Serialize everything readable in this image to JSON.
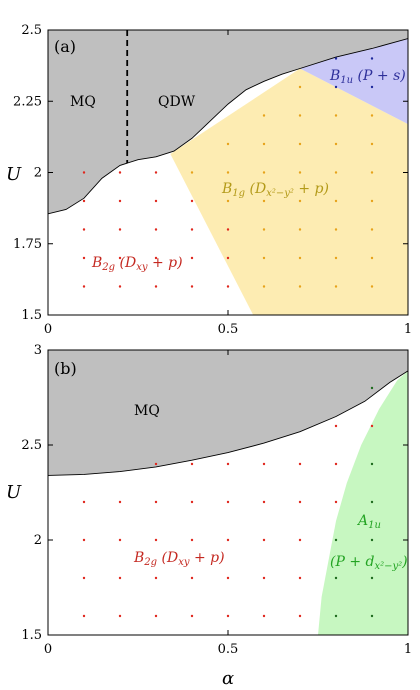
{
  "chart_data": [
    {
      "type": "scatter",
      "panel_label": "(a)",
      "xlabel": "",
      "ylabel": "U",
      "xlim": [
        0,
        1
      ],
      "ylim": [
        1.5,
        2.5
      ],
      "x_ticks": [
        {
          "v": 0,
          "t": "0"
        },
        {
          "v": 0.5,
          "t": "0.5"
        },
        {
          "v": 1,
          "t": "1"
        }
      ],
      "y_ticks": [
        {
          "v": 1.5,
          "t": "1.5"
        },
        {
          "v": 1.75,
          "t": "1.75"
        },
        {
          "v": 2,
          "t": "2"
        },
        {
          "v": 2.25,
          "t": "2.25"
        },
        {
          "v": 2.5,
          "t": "2.5"
        }
      ],
      "labels": {
        "mq": "MQ",
        "qdw": "QDW",
        "b1u": {
          "main": "B",
          "sub": "1u",
          "rest": " (P + s)"
        },
        "b1g": {
          "main": "B",
          "sub": "1g",
          "rest1": " (D",
          "sub2": "x²−y²",
          "rest2": " + p)"
        },
        "b2g": {
          "main": "B",
          "sub": "2g",
          "rest1": " (D",
          "sub2": "xy",
          "rest2": " + p)"
        }
      },
      "colors": {
        "gray": "#bfbfbf",
        "yellow": "#fdecb2",
        "blue": "#c9c8f7",
        "red": "#e0281e",
        "orange": "#e7a31b",
        "navy": "#1f2a9c",
        "b1g_text": "#b39a19",
        "b1u_text": "#2d2f9a",
        "b2g_text": "#c42820"
      },
      "boundary_upper": [
        [
          0,
          1.855
        ],
        [
          0.05,
          1.87
        ],
        [
          0.1,
          1.91
        ],
        [
          0.15,
          1.98
        ],
        [
          0.2,
          2.025
        ],
        [
          0.25,
          2.045
        ],
        [
          0.3,
          2.055
        ],
        [
          0.35,
          2.075
        ],
        [
          0.4,
          2.12
        ],
        [
          0.45,
          2.18
        ],
        [
          0.5,
          2.24
        ],
        [
          0.55,
          2.29
        ],
        [
          0.6,
          2.32
        ],
        [
          0.65,
          2.345
        ],
        [
          0.7,
          2.365
        ],
        [
          0.8,
          2.405
        ],
        [
          0.9,
          2.435
        ],
        [
          1.0,
          2.47
        ]
      ],
      "qdw_divider_x": 0.22,
      "b1g_region": [
        [
          0.34,
          2.065
        ],
        [
          0.7,
          2.365
        ],
        [
          1.0,
          2.17
        ],
        [
          1.0,
          1.5
        ],
        [
          0.57,
          1.5
        ]
      ],
      "b1u_region": [
        [
          0.7,
          2.365
        ],
        [
          0.8,
          2.405
        ],
        [
          0.9,
          2.435
        ],
        [
          1.0,
          2.47
        ],
        [
          1.0,
          2.17
        ]
      ],
      "points_red": [
        [
          0.1,
          1.6
        ],
        [
          0.2,
          1.6
        ],
        [
          0.3,
          1.6
        ],
        [
          0.4,
          1.6
        ],
        [
          0.5,
          1.6
        ],
        [
          0.1,
          1.7
        ],
        [
          0.2,
          1.7
        ],
        [
          0.3,
          1.7
        ],
        [
          0.4,
          1.7
        ],
        [
          0.5,
          1.7
        ],
        [
          0.1,
          1.8
        ],
        [
          0.2,
          1.8
        ],
        [
          0.3,
          1.8
        ],
        [
          0.4,
          1.8
        ],
        [
          0.5,
          1.8
        ],
        [
          0.1,
          1.9
        ],
        [
          0.2,
          1.9
        ],
        [
          0.3,
          1.9
        ],
        [
          0.4,
          1.9
        ],
        [
          0.1,
          2.0
        ],
        [
          0.2,
          2.0
        ],
        [
          0.3,
          2.0
        ]
      ],
      "points_orange": [
        [
          0.6,
          1.6
        ],
        [
          0.7,
          1.6
        ],
        [
          0.8,
          1.6
        ],
        [
          0.9,
          1.6
        ],
        [
          0.6,
          1.7
        ],
        [
          0.7,
          1.7
        ],
        [
          0.8,
          1.7
        ],
        [
          0.9,
          1.7
        ],
        [
          0.6,
          1.8
        ],
        [
          0.7,
          1.8
        ],
        [
          0.8,
          1.8
        ],
        [
          0.9,
          1.8
        ],
        [
          0.5,
          1.9
        ],
        [
          0.6,
          1.9
        ],
        [
          0.7,
          1.9
        ],
        [
          0.8,
          1.9
        ],
        [
          0.9,
          1.9
        ],
        [
          0.4,
          2.0
        ],
        [
          0.5,
          2.0
        ],
        [
          0.6,
          2.0
        ],
        [
          0.7,
          2.0
        ],
        [
          0.8,
          2.0
        ],
        [
          0.9,
          2.0
        ],
        [
          0.5,
          2.1
        ],
        [
          0.6,
          2.1
        ],
        [
          0.7,
          2.1
        ],
        [
          0.8,
          2.1
        ],
        [
          0.9,
          2.1
        ],
        [
          0.6,
          2.2
        ],
        [
          0.7,
          2.2
        ],
        [
          0.8,
          2.2
        ],
        [
          0.9,
          2.2
        ],
        [
          0.7,
          2.3
        ]
      ],
      "points_navy": [
        [
          0.8,
          2.3
        ],
        [
          0.9,
          2.3
        ],
        [
          0.8,
          2.4
        ],
        [
          0.9,
          2.4
        ]
      ]
    },
    {
      "type": "scatter",
      "panel_label": "(b)",
      "xlabel": "α",
      "ylabel": "U",
      "xlim": [
        0,
        1
      ],
      "ylim": [
        1.5,
        3
      ],
      "x_ticks": [
        {
          "v": 0,
          "t": "0"
        },
        {
          "v": 0.5,
          "t": "0.5"
        },
        {
          "v": 1,
          "t": "1"
        }
      ],
      "y_ticks": [
        {
          "v": 1.5,
          "t": "1.5"
        },
        {
          "v": 2,
          "t": "2"
        },
        {
          "v": 2.5,
          "t": "2.5"
        },
        {
          "v": 3,
          "t": "3"
        }
      ],
      "labels": {
        "mq": "MQ",
        "a1u": {
          "main": "A",
          "sub": "1u"
        },
        "a1u_2": {
          "rest1": "(P + d",
          "sub2": "x²−y²",
          "rest2": ")"
        },
        "b2g": {
          "main": "B",
          "sub": "2g",
          "rest1": " (D",
          "sub2": "xy",
          "rest2": " + p)"
        }
      },
      "colors": {
        "gray": "#bfbfbf",
        "green": "#c7f7c1",
        "red": "#e0281e",
        "darkgreen": "#1e6b1e",
        "a1u_text": "#23a323",
        "b2g_text": "#c42820"
      },
      "boundary_upper": [
        [
          0,
          2.34
        ],
        [
          0.1,
          2.345
        ],
        [
          0.2,
          2.36
        ],
        [
          0.3,
          2.385
        ],
        [
          0.4,
          2.42
        ],
        [
          0.5,
          2.46
        ],
        [
          0.6,
          2.51
        ],
        [
          0.7,
          2.57
        ],
        [
          0.8,
          2.65
        ],
        [
          0.88,
          2.73
        ],
        [
          0.95,
          2.83
        ],
        [
          1.0,
          2.89
        ]
      ],
      "a1u_region": [
        [
          0.75,
          1.5
        ],
        [
          0.76,
          1.7
        ],
        [
          0.78,
          1.9
        ],
        [
          0.8,
          2.1
        ],
        [
          0.83,
          2.3
        ],
        [
          0.87,
          2.5
        ],
        [
          0.92,
          2.69
        ],
        [
          0.97,
          2.84
        ],
        [
          1.0,
          2.89
        ],
        [
          1.0,
          1.5
        ]
      ],
      "points_red": [
        [
          0.1,
          1.6
        ],
        [
          0.2,
          1.6
        ],
        [
          0.3,
          1.6
        ],
        [
          0.4,
          1.6
        ],
        [
          0.5,
          1.6
        ],
        [
          0.6,
          1.6
        ],
        [
          0.7,
          1.6
        ],
        [
          0.1,
          1.8
        ],
        [
          0.2,
          1.8
        ],
        [
          0.3,
          1.8
        ],
        [
          0.4,
          1.8
        ],
        [
          0.5,
          1.8
        ],
        [
          0.6,
          1.8
        ],
        [
          0.7,
          1.8
        ],
        [
          0.1,
          2.0
        ],
        [
          0.2,
          2.0
        ],
        [
          0.3,
          2.0
        ],
        [
          0.4,
          2.0
        ],
        [
          0.5,
          2.0
        ],
        [
          0.6,
          2.0
        ],
        [
          0.7,
          2.0
        ],
        [
          0.1,
          2.2
        ],
        [
          0.2,
          2.2
        ],
        [
          0.3,
          2.2
        ],
        [
          0.4,
          2.2
        ],
        [
          0.5,
          2.2
        ],
        [
          0.6,
          2.2
        ],
        [
          0.7,
          2.2
        ],
        [
          0.3,
          2.4
        ],
        [
          0.4,
          2.4
        ],
        [
          0.5,
          2.4
        ],
        [
          0.6,
          2.4
        ],
        [
          0.7,
          2.4
        ],
        [
          0.8,
          2.4
        ],
        [
          0.8,
          2.2
        ],
        [
          0.8,
          2.6
        ],
        [
          0.9,
          2.6
        ]
      ],
      "points_green": [
        [
          0.8,
          1.6
        ],
        [
          0.9,
          1.6
        ],
        [
          0.8,
          1.8
        ],
        [
          0.9,
          1.8
        ],
        [
          0.8,
          2.0
        ],
        [
          0.9,
          2.0
        ],
        [
          0.9,
          2.2
        ],
        [
          0.9,
          2.4
        ],
        [
          0.9,
          2.8
        ]
      ]
    }
  ]
}
